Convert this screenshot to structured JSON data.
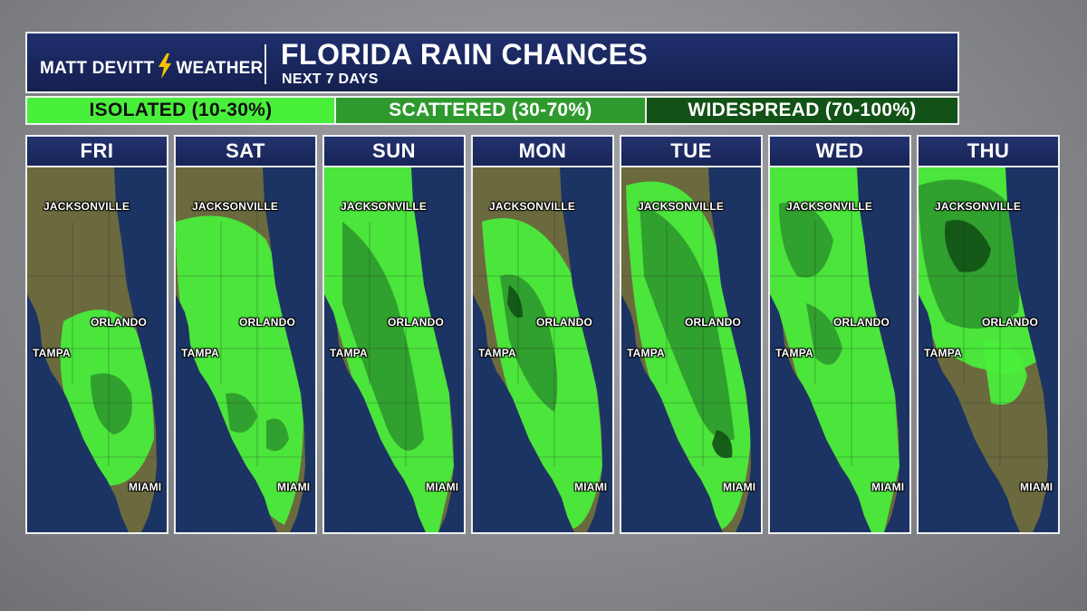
{
  "brand": {
    "left": "MATT DEVITT",
    "right": "WEATHER",
    "icon": "lightning-bolt-icon"
  },
  "title": "FLORIDA RAIN CHANCES",
  "subtitle": "NEXT 7 DAYS",
  "legend": [
    {
      "label": "ISOLATED (10-30%)",
      "color": "#49f03b"
    },
    {
      "label": "SCATTERED (30-70%)",
      "color": "#2e9a2e"
    },
    {
      "label": "WIDESPREAD (70-100%)",
      "color": "#125216"
    }
  ],
  "colors": {
    "land": "#6b6a3e",
    "ocean": "#1c3464",
    "isolated": "#49f03b",
    "scattered": "#2e9a2e",
    "widespread": "#125216",
    "header": "#1a2a60"
  },
  "cities": {
    "jacksonville": "JACKSONVILLE",
    "orlando": "ORLANDO",
    "tampa": "TAMPA",
    "miami": "MIAMI"
  },
  "days": [
    "FRI",
    "SAT",
    "SUN",
    "MON",
    "TUE",
    "WED",
    "THU"
  ]
}
